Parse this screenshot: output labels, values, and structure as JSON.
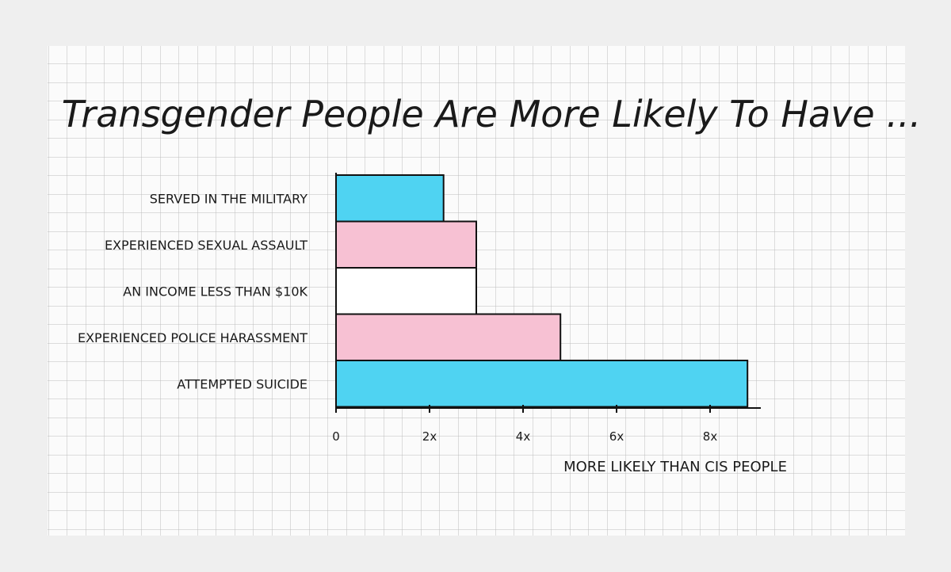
{
  "chart_data": {
    "type": "bar",
    "orientation": "horizontal",
    "title": "Transgender People Are More Likely To Have ...",
    "xlabel": "MORE LIKELY THAN CIS PEOPLE",
    "ylabel": "",
    "categories": [
      "SERVED IN THE MILITARY",
      "EXPERIENCED SEXUAL ASSAULT",
      "AN INCOME LESS THAN $10K",
      "EXPERIENCED POLICE HARASSMENT",
      "ATTEMPTED SUICIDE"
    ],
    "values": [
      2.3,
      3.0,
      3.0,
      4.8,
      8.8
    ],
    "bar_colors": [
      "#4fd3f2",
      "#f7c1d3",
      "#ffffff",
      "#f7c1d3",
      "#4fd3f2"
    ],
    "xlim": [
      0,
      9
    ],
    "xticks": [
      0,
      2,
      4,
      6,
      8
    ],
    "xtick_labels": [
      "0",
      "2x",
      "4x",
      "6x",
      "8x"
    ],
    "grid": true,
    "legend": "none"
  }
}
